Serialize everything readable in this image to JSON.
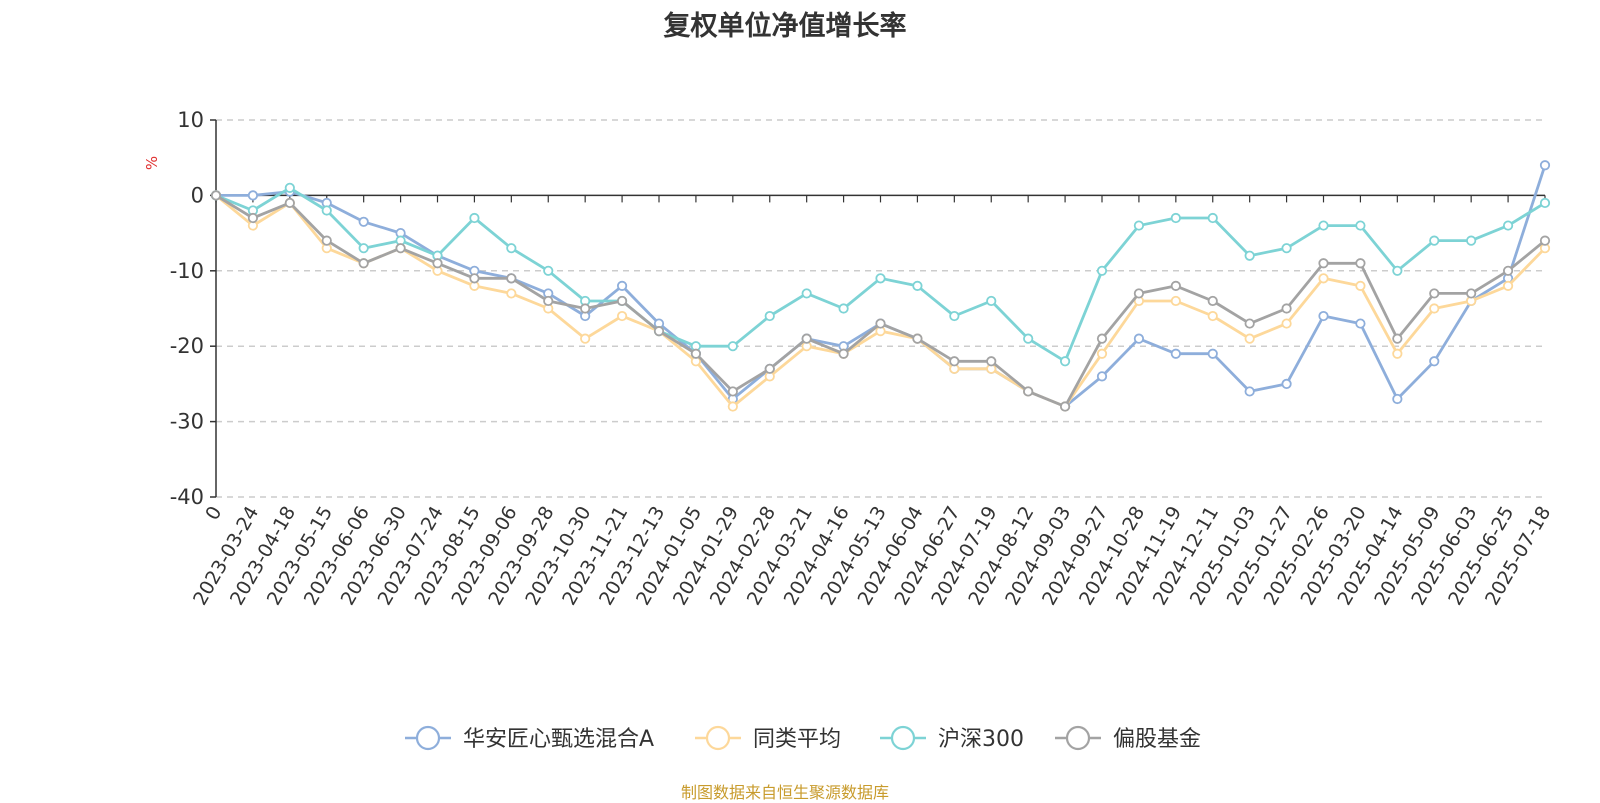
{
  "chart_data": {
    "type": "line",
    "title": "复权单位净值增长率",
    "ylabel": "%",
    "ylim": [
      -40,
      10
    ],
    "yticks": [
      10,
      0,
      -10,
      -20,
      -30,
      -40
    ],
    "grid": true,
    "legend_position": "bottom-center",
    "source": "制图数据来自恒生聚源数据库",
    "x_tick_labels": [
      "0",
      "2023-03-24",
      "2023-04-18",
      "2023-05-15",
      "2023-06-06",
      "2023-06-30",
      "2023-07-24",
      "2023-08-15",
      "2023-09-06",
      "2023-09-28",
      "2023-10-30",
      "2023-11-21",
      "2023-12-13",
      "2024-01-05",
      "2024-01-29",
      "2024-02-28",
      "2024-03-21",
      "2024-04-16",
      "2024-05-13",
      "2024-06-04",
      "2024-06-27",
      "2024-07-19",
      "2024-08-12",
      "2024-09-03",
      "2024-09-27",
      "2024-10-28",
      "2024-11-19",
      "2024-12-11",
      "2025-01-03",
      "2025-01-27",
      "2025-02-26",
      "2025-03-20",
      "2025-04-14",
      "2025-05-09",
      "2025-06-03",
      "2025-06-25",
      "2025-07-18"
    ],
    "x": [
      "0",
      "2023-03-24",
      "2023-04-18",
      "2023-05-15",
      "2023-06-06",
      "2023-06-30",
      "2023-07-24",
      "2023-08-15",
      "2023-09-06",
      "2023-09-28",
      "2023-10-30",
      "2023-11-21",
      "2023-12-13",
      "2024-01-05",
      "2024-01-29",
      "2024-02-28",
      "2024-03-21",
      "2024-04-16",
      "2024-05-13",
      "2024-06-04",
      "2024-06-27",
      "2024-07-19",
      "2024-08-12",
      "2024-09-03",
      "2024-09-27",
      "2024-10-28",
      "2024-11-19",
      "2024-12-11",
      "2025-01-03",
      "2025-01-27",
      "2025-02-26",
      "2025-03-20",
      "2025-04-14",
      "2025-05-09",
      "2025-06-03",
      "2025-06-25",
      "2025-07-18"
    ],
    "series": [
      {
        "name": "华安匠心甄选混合A",
        "color": "#8eaedb",
        "values": [
          0,
          0,
          0.5,
          -1,
          -3.5,
          -5,
          -8,
          -10,
          -11,
          -13,
          -16,
          -12,
          -17,
          -21,
          -27,
          -23,
          -19,
          -20,
          -17,
          -19,
          -23,
          -23,
          -26,
          -28,
          -24,
          -19,
          -21,
          -21,
          -26,
          -25,
          -16,
          -17,
          -27,
          -22,
          -14,
          -11,
          4
        ]
      },
      {
        "name": "同类平均",
        "color": "#fdd89a",
        "values": [
          0,
          -4,
          -1,
          -7,
          -9,
          -7,
          -10,
          -12,
          -13,
          -15,
          -19,
          -16,
          -18,
          -22,
          -28,
          -24,
          -20,
          -21,
          -18,
          -19,
          -23,
          -23,
          -26,
          -28,
          -21,
          -14,
          -14,
          -16,
          -19,
          -17,
          -11,
          -12,
          -21,
          -15,
          -14,
          -12,
          -7
        ]
      },
      {
        "name": "沪深300",
        "color": "#7dd3d5",
        "values": [
          0,
          -2,
          1,
          -2,
          -7,
          -6,
          -8,
          -3,
          -7,
          -10,
          -14,
          -14,
          -18,
          -20,
          -20,
          -16,
          -13,
          -15,
          -11,
          -12,
          -16,
          -14,
          -19,
          -22,
          -10,
          -4,
          -3,
          -3,
          -8,
          -7,
          -4,
          -4,
          -10,
          -6,
          -6,
          -4,
          -1
        ]
      },
      {
        "name": "偏股基金",
        "color": "#a3a3a3",
        "values": [
          0,
          -3,
          -1,
          -6,
          -9,
          -7,
          -9,
          -11,
          -11,
          -14,
          -15,
          -14,
          -18,
          -21,
          -26,
          -23,
          -19,
          -21,
          -17,
          -19,
          -22,
          -22,
          -26,
          -28,
          -19,
          -13,
          -12,
          -14,
          -17,
          -15,
          -9,
          -9,
          -19,
          -13,
          -13,
          -10,
          -6
        ]
      }
    ]
  }
}
